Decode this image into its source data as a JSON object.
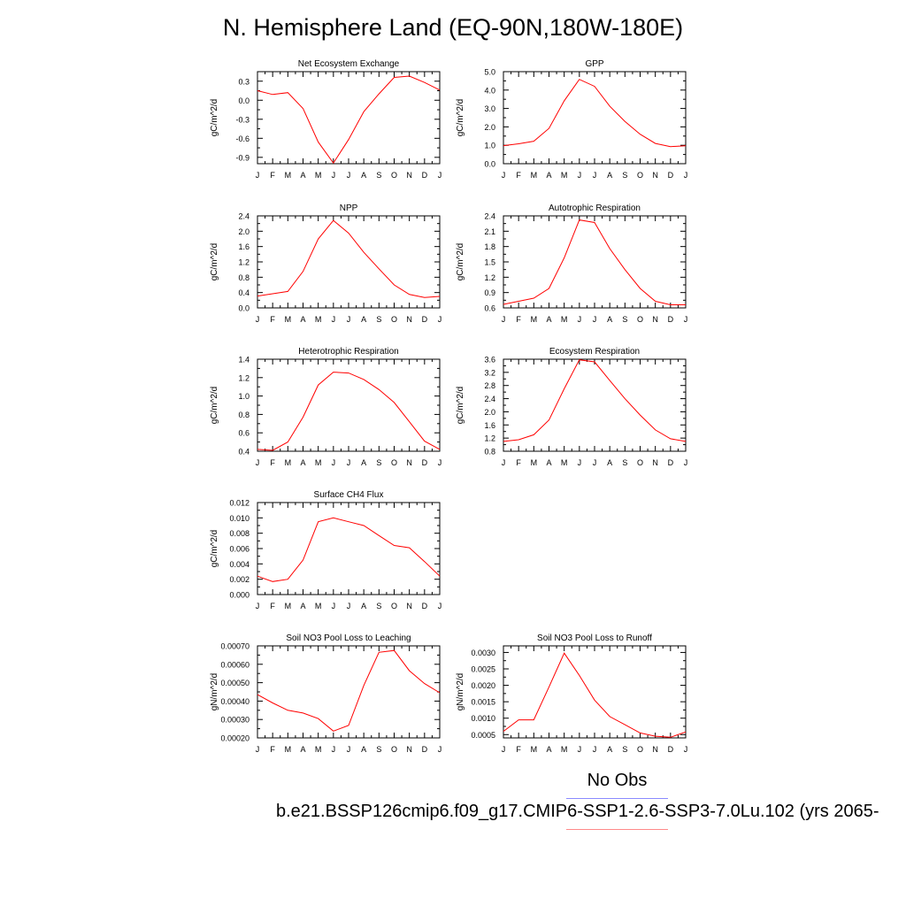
{
  "title": "N. Hemisphere Land (EQ-90N,180W-180E)",
  "colors": {
    "series": "#ff0000",
    "axis": "#000000",
    "obs_line": "#8a8aff",
    "case_line": "#ff8a8a"
  },
  "legend": {
    "obs_label": "No Obs",
    "case_label": "b.e21.BSSP126cmip6.f09_g17.CMIP6-SSP1-2.6-SSP3-7.0Lu.102 (yrs 2065-"
  },
  "chart_data": [
    {
      "id": "nee",
      "type": "line",
      "title": "Net Ecosystem Exchange",
      "ylabel": "gC/m^2/d",
      "categories": [
        "J",
        "F",
        "M",
        "A",
        "M",
        "J",
        "J",
        "A",
        "S",
        "O",
        "N",
        "D",
        "J"
      ],
      "ylim": [
        -1.0,
        0.45
      ],
      "yticks": [
        "0.3",
        "0.0",
        "-0.3",
        "-0.6",
        "-0.9"
      ],
      "values": [
        0.15,
        0.09,
        0.12,
        -0.13,
        -0.66,
        -0.99,
        -0.62,
        -0.18,
        0.1,
        0.36,
        0.38,
        0.28,
        0.16
      ]
    },
    {
      "id": "gpp",
      "type": "line",
      "title": "GPP",
      "ylabel": "gC/m^2/d",
      "categories": [
        "J",
        "F",
        "M",
        "A",
        "M",
        "J",
        "J",
        "A",
        "S",
        "O",
        "N",
        "D",
        "J"
      ],
      "ylim": [
        0.0,
        5.0
      ],
      "yticks": [
        "5.0",
        "4.0",
        "3.0",
        "2.0",
        "1.0",
        "0.0"
      ],
      "values": [
        0.98,
        1.08,
        1.22,
        1.92,
        3.42,
        4.58,
        4.2,
        3.12,
        2.3,
        1.6,
        1.1,
        0.93,
        0.97
      ]
    },
    {
      "id": "npp",
      "type": "line",
      "title": "NPP",
      "ylabel": "gC/m^2/d",
      "categories": [
        "J",
        "F",
        "M",
        "A",
        "M",
        "J",
        "J",
        "A",
        "S",
        "O",
        "N",
        "D",
        "J"
      ],
      "ylim": [
        0.0,
        2.4
      ],
      "yticks": [
        "2.4",
        "2.0",
        "1.6",
        "1.2",
        "0.8",
        "0.4",
        "0.0"
      ],
      "values": [
        0.31,
        0.37,
        0.43,
        0.95,
        1.8,
        2.28,
        1.95,
        1.45,
        1.02,
        0.6,
        0.35,
        0.27,
        0.3
      ]
    },
    {
      "id": "ar",
      "type": "line",
      "title": "Autotrophic Respiration",
      "ylabel": "gC/m^2/d",
      "categories": [
        "J",
        "F",
        "M",
        "A",
        "M",
        "J",
        "J",
        "A",
        "S",
        "O",
        "N",
        "D",
        "J"
      ],
      "ylim": [
        0.6,
        2.4
      ],
      "yticks": [
        "2.4",
        "2.1",
        "1.8",
        "1.5",
        "1.2",
        "0.9",
        "0.6"
      ],
      "values": [
        0.67,
        0.73,
        0.79,
        0.98,
        1.58,
        2.32,
        2.27,
        1.76,
        1.35,
        0.98,
        0.73,
        0.66,
        0.66
      ]
    },
    {
      "id": "hr",
      "type": "line",
      "title": "Heterotrophic Respiration",
      "ylabel": "gC/m^2/d",
      "categories": [
        "J",
        "F",
        "M",
        "A",
        "M",
        "J",
        "J",
        "A",
        "S",
        "O",
        "N",
        "D",
        "J"
      ],
      "ylim": [
        0.4,
        1.4
      ],
      "yticks": [
        "1.4",
        "1.2",
        "1.0",
        "0.8",
        "0.6",
        "0.4"
      ],
      "values": [
        0.42,
        0.41,
        0.5,
        0.77,
        1.12,
        1.26,
        1.25,
        1.18,
        1.07,
        0.93,
        0.72,
        0.51,
        0.42
      ]
    },
    {
      "id": "er",
      "type": "line",
      "title": "Ecosystem Respiration",
      "ylabel": "gC/m^2/d",
      "categories": [
        "J",
        "F",
        "M",
        "A",
        "M",
        "J",
        "J",
        "A",
        "S",
        "O",
        "N",
        "D",
        "J"
      ],
      "ylim": [
        0.8,
        3.6
      ],
      "yticks": [
        "3.6",
        "3.2",
        "2.8",
        "2.4",
        "2.0",
        "1.6",
        "1.2",
        "0.8"
      ],
      "values": [
        1.1,
        1.15,
        1.3,
        1.75,
        2.7,
        3.58,
        3.52,
        2.95,
        2.4,
        1.9,
        1.45,
        1.18,
        1.1
      ]
    },
    {
      "id": "ch4",
      "type": "line",
      "title": "Surface CH4 Flux",
      "ylabel": "gC/m^2/d",
      "categories": [
        "J",
        "F",
        "M",
        "A",
        "M",
        "J",
        "J",
        "A",
        "S",
        "O",
        "N",
        "D",
        "J"
      ],
      "ylim": [
        0.0,
        0.012
      ],
      "yticks": [
        "0.012",
        "0.010",
        "0.008",
        "0.006",
        "0.004",
        "0.002",
        "0.000"
      ],
      "values": [
        0.0024,
        0.0017,
        0.002,
        0.0045,
        0.0095,
        0.01,
        0.0095,
        0.009,
        0.0077,
        0.0064,
        0.0061,
        0.0043,
        0.0024
      ]
    },
    {
      "id": "no3leach",
      "type": "line",
      "title": "Soil NO3 Pool Loss to Leaching",
      "ylabel": "gN/m^2/d",
      "categories": [
        "J",
        "F",
        "M",
        "A",
        "M",
        "J",
        "J",
        "A",
        "S",
        "O",
        "N",
        "D",
        "J"
      ],
      "ylim": [
        0.0002,
        0.0007
      ],
      "yticks": [
        "0.00070",
        "0.00060",
        "0.00050",
        "0.00040",
        "0.00030",
        "0.00020"
      ],
      "values": [
        0.000435,
        0.00039,
        0.00035,
        0.000335,
        0.000305,
        0.000237,
        0.000268,
        0.000485,
        0.000665,
        0.000675,
        0.000565,
        0.000495,
        0.000445
      ]
    },
    {
      "id": "no3runoff",
      "type": "line",
      "title": "Soil NO3 Pool Loss to Runoff",
      "ylabel": "gN/m^2/d",
      "categories": [
        "J",
        "F",
        "M",
        "A",
        "M",
        "J",
        "J",
        "A",
        "S",
        "O",
        "N",
        "D",
        "J"
      ],
      "ylim": [
        0.0004,
        0.0032
      ],
      "yticks": [
        "0.0030",
        "0.0025",
        "0.0020",
        "0.0015",
        "0.0010",
        "0.0005"
      ],
      "ytick_values": [
        0.003,
        0.0025,
        0.002,
        0.0015,
        0.001,
        0.0005
      ],
      "values": [
        0.0006,
        0.00095,
        0.00095,
        0.00195,
        0.00298,
        0.0023,
        0.00155,
        0.00105,
        0.0008,
        0.00055,
        0.00045,
        0.00042,
        0.00058
      ]
    }
  ]
}
